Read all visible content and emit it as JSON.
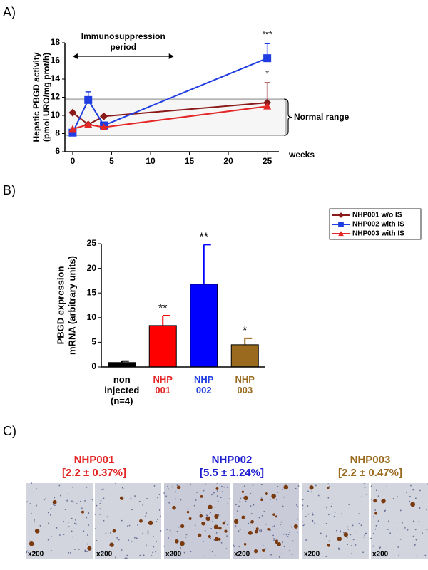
{
  "chart_data": [
    {
      "type": "line",
      "label": "A)",
      "ylabel": [
        "Hepatic PBGD activity",
        "(pmol URO/mg prot/h)"
      ],
      "xlabel": "weeks",
      "x": [
        0,
        2,
        4,
        25
      ],
      "xlim": [
        -1,
        26.5
      ],
      "xticks": [
        0,
        5,
        10,
        15,
        20,
        25
      ],
      "ylim": [
        6,
        18
      ],
      "yticks": [
        6,
        8,
        10,
        12,
        14,
        16,
        18
      ],
      "normal_range": [
        7.8,
        11.8
      ],
      "normal_range_label": "Normal range",
      "period": [
        0,
        13
      ],
      "period_label": "Immunosuppression period",
      "series": [
        {
          "name": "NHP001 w/o IS",
          "color": "#8b1a1a",
          "marker": "diamond",
          "values": [
            10.3,
            9.0,
            9.9,
            11.4
          ],
          "errors": [
            null,
            null,
            null,
            2.2
          ],
          "significance": [
            null,
            null,
            null,
            "*"
          ]
        },
        {
          "name": "NHP002 with IS",
          "color": "#1f3de0",
          "marker": "square",
          "values": [
            8.1,
            11.7,
            8.9,
            16.3
          ],
          "errors": [
            null,
            0.9,
            null,
            1.6
          ],
          "significance": [
            null,
            null,
            null,
            "***"
          ]
        },
        {
          "name": "NHP003 with IS",
          "color": "#e32626",
          "marker": "triangle",
          "values": [
            8.5,
            9.0,
            8.7,
            11.0
          ],
          "errors": [
            null,
            null,
            null,
            null
          ],
          "significance": [
            null,
            null,
            null,
            null
          ]
        }
      ]
    },
    {
      "type": "bar",
      "label": "B)",
      "ylabel": [
        "PBGD expression",
        "mRNA (arbitrary units)"
      ],
      "categories": [
        "non injected (n=4)",
        "NHP 001",
        "NHP 002",
        "NHP 003"
      ],
      "category_colors": [
        "#000000",
        "#e32626",
        "#1f3de0",
        "#9a6b1e"
      ],
      "values": [
        0.9,
        8.4,
        16.8,
        4.5
      ],
      "errors": [
        0.3,
        2.0,
        8.0,
        1.3
      ],
      "significance": [
        null,
        "**",
        "**",
        "*"
      ],
      "colors": [
        "#000000",
        "#ff0000",
        "#0000ff",
        "#9a6b1e"
      ],
      "ylim": [
        0,
        25
      ],
      "yticks": [
        0,
        5,
        10,
        15,
        20,
        25
      ]
    }
  ],
  "panel_c": {
    "label": "C)",
    "samples": [
      {
        "name": "NHP001",
        "value": "[2.2 ± 0.37%]",
        "color": "#e32626",
        "magnification": [
          "x200",
          "x200"
        ]
      },
      {
        "name": "NHP002",
        "value": "[5.5 ± 1.24%]",
        "color": "#1f1fd0",
        "magnification": [
          "x200",
          "x200"
        ]
      },
      {
        "name": "NHP003",
        "value": "[2.2 ± 0.47%]",
        "color": "#9a6b1e",
        "magnification": [
          "x200",
          "x200"
        ]
      }
    ]
  }
}
